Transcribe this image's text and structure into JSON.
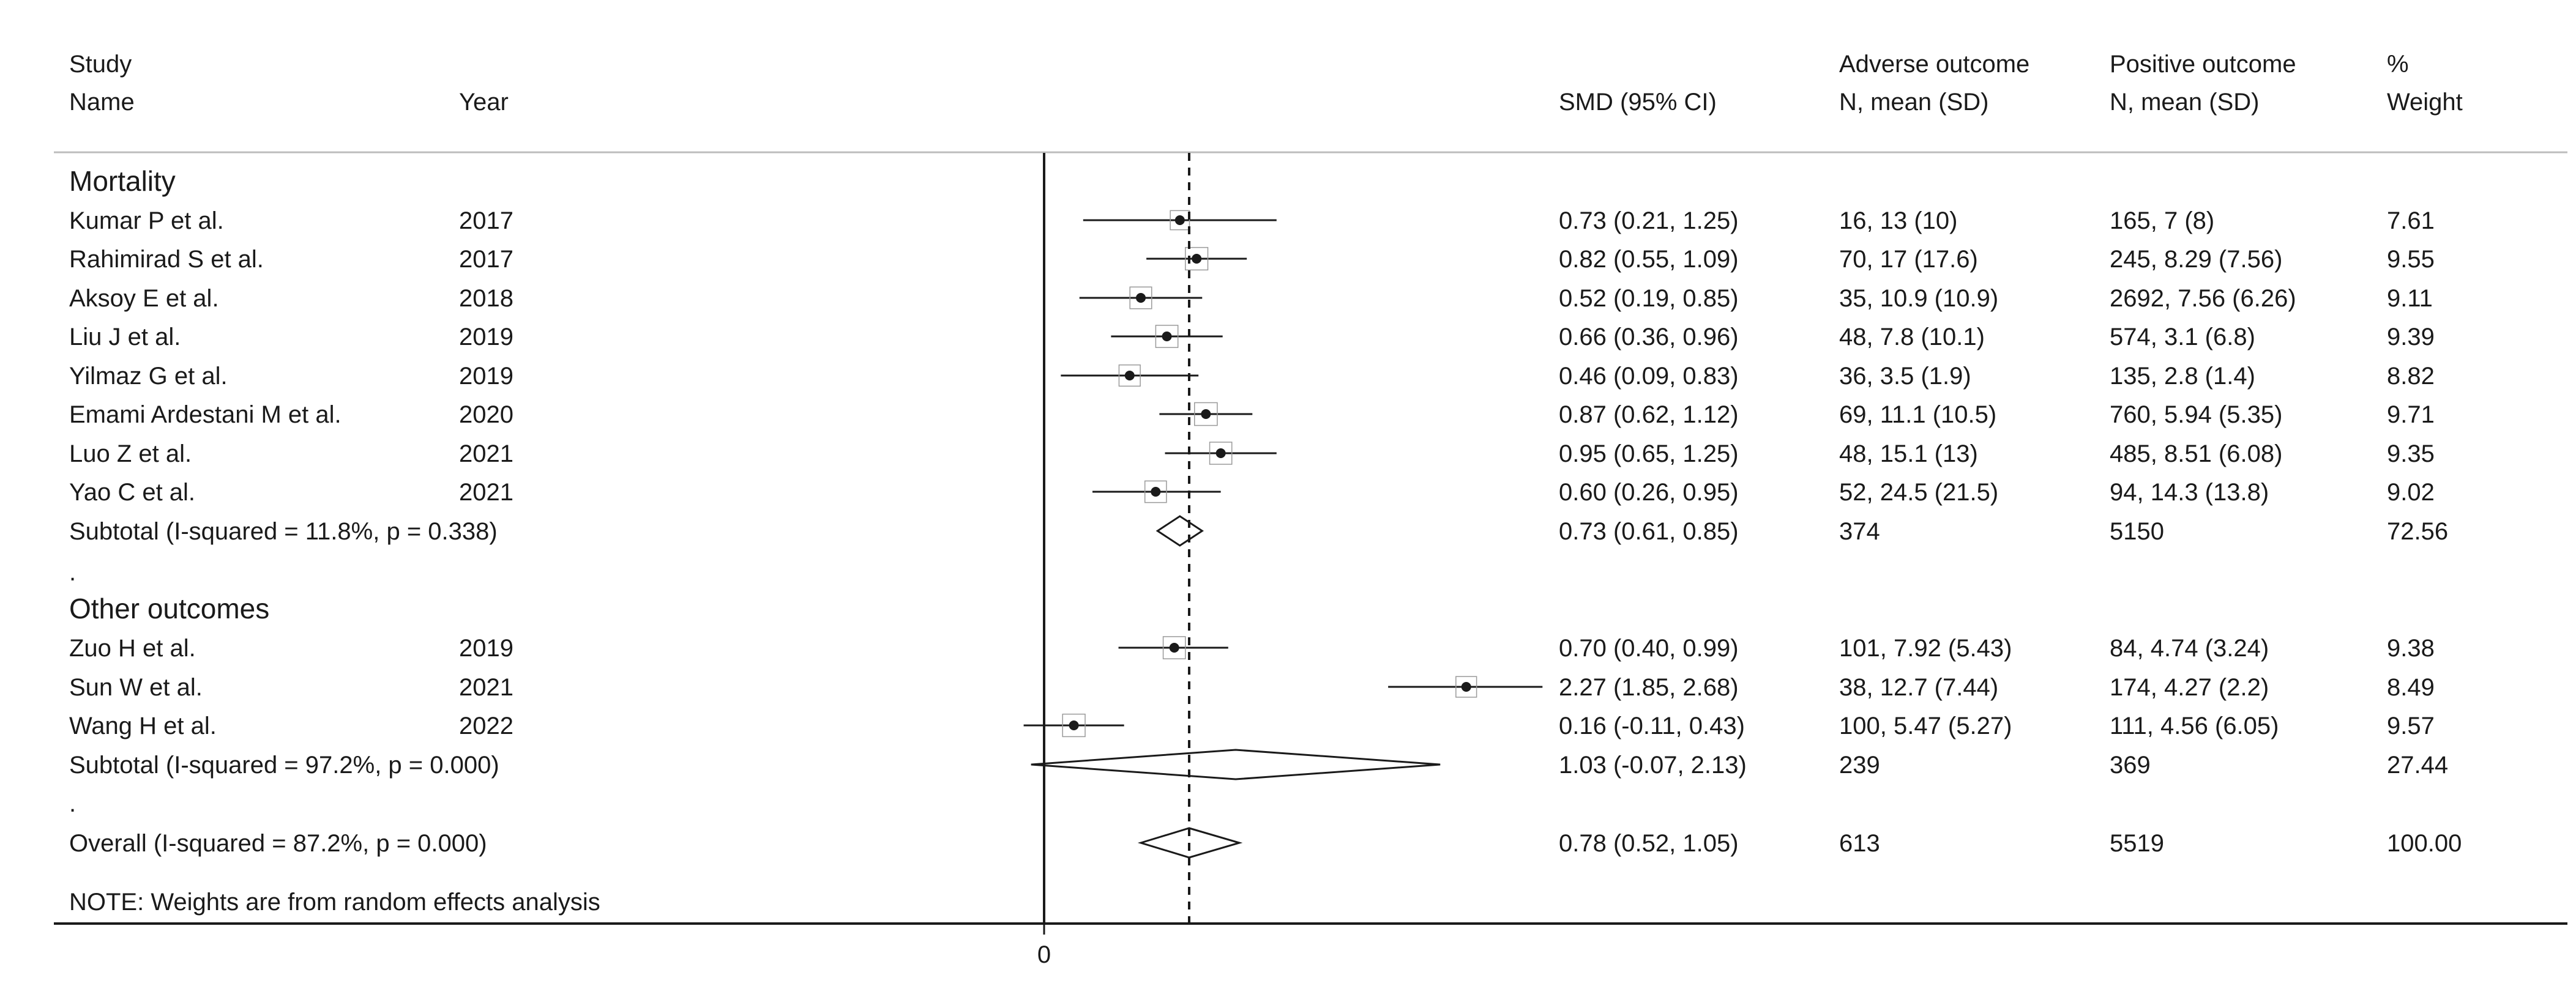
{
  "headers": {
    "study_line1": "Study",
    "study_line2": "Name",
    "year": "Year",
    "smd": "SMD (95% CI)",
    "adverse_line1": "Adverse outcome",
    "adverse_line2": "N, mean (SD)",
    "positive_line1": "Positive outcome",
    "positive_line2": "N, mean (SD)",
    "weight_line1": "%",
    "weight_line2": "Weight"
  },
  "note": "NOTE: Weights are from random effects analysis",
  "colors": {
    "ink": "#1a1a1a",
    "rule": "#bdbdbd",
    "background": "#ffffff"
  },
  "chart_data": {
    "type": "forest",
    "x_tick": "0",
    "xlim": [
      -0.2,
      2.75
    ],
    "reference_line": 0,
    "overall_line": 0.78,
    "rows": [
      {
        "kind": "group",
        "label": "Mortality"
      },
      {
        "kind": "study",
        "name": "Kumar P et al.",
        "year": "2017",
        "est": 0.73,
        "lo": 0.21,
        "hi": 1.25,
        "ci_text": "0.73 (0.21, 1.25)",
        "adverse": "16, 13 (10)",
        "positive": "165, 7 (8)",
        "weight": "7.61"
      },
      {
        "kind": "study",
        "name": "Rahimirad S et al.",
        "year": "2017",
        "est": 0.82,
        "lo": 0.55,
        "hi": 1.09,
        "ci_text": "0.82 (0.55, 1.09)",
        "adverse": "70, 17 (17.6)",
        "positive": "245, 8.29 (7.56)",
        "weight": "9.55"
      },
      {
        "kind": "study",
        "name": "Aksoy E et al.",
        "year": "2018",
        "est": 0.52,
        "lo": 0.19,
        "hi": 0.85,
        "ci_text": "0.52 (0.19, 0.85)",
        "adverse": "35, 10.9 (10.9)",
        "positive": "2692, 7.56 (6.26)",
        "weight": "9.11"
      },
      {
        "kind": "study",
        "name": "Liu J et al.",
        "year": "2019",
        "est": 0.66,
        "lo": 0.36,
        "hi": 0.96,
        "ci_text": "0.66 (0.36, 0.96)",
        "adverse": "48, 7.8 (10.1)",
        "positive": "574, 3.1 (6.8)",
        "weight": "9.39"
      },
      {
        "kind": "study",
        "name": "Yilmaz G et al.",
        "year": "2019",
        "est": 0.46,
        "lo": 0.09,
        "hi": 0.83,
        "ci_text": "0.46 (0.09, 0.83)",
        "adverse": "36, 3.5 (1.9)",
        "positive": "135, 2.8 (1.4)",
        "weight": "8.82"
      },
      {
        "kind": "study",
        "name": "Emami Ardestani M et al.",
        "year": "2020",
        "est": 0.87,
        "lo": 0.62,
        "hi": 1.12,
        "ci_text": "0.87 (0.62, 1.12)",
        "adverse": "69, 11.1 (10.5)",
        "positive": "760, 5.94 (5.35)",
        "weight": "9.71"
      },
      {
        "kind": "study",
        "name": "Luo Z et al.",
        "year": "2021",
        "est": 0.95,
        "lo": 0.65,
        "hi": 1.25,
        "ci_text": "0.95 (0.65, 1.25)",
        "adverse": "48, 15.1 (13)",
        "positive": "485, 8.51 (6.08)",
        "weight": "9.35"
      },
      {
        "kind": "study",
        "name": "Yao C et al.",
        "year": "2021",
        "est": 0.6,
        "lo": 0.26,
        "hi": 0.95,
        "ci_text": "0.60 (0.26, 0.95)",
        "adverse": "52, 24.5 (21.5)",
        "positive": "94, 14.3 (13.8)",
        "weight": "9.02"
      },
      {
        "kind": "subtotal",
        "name": "Subtotal  (I-squared = 11.8%, p = 0.338)",
        "est": 0.73,
        "lo": 0.61,
        "hi": 0.85,
        "ci_text": "0.73 (0.61, 0.85)",
        "adverse": "374",
        "positive": "5150",
        "weight": "72.56"
      },
      {
        "kind": "spacer",
        "label": "."
      },
      {
        "kind": "group",
        "label": "Other outcomes"
      },
      {
        "kind": "study",
        "name": "Zuo H et al.",
        "year": "2019",
        "est": 0.7,
        "lo": 0.4,
        "hi": 0.99,
        "ci_text": "0.70 (0.40, 0.99)",
        "adverse": "101, 7.92 (5.43)",
        "positive": "84, 4.74 (3.24)",
        "weight": "9.38"
      },
      {
        "kind": "study",
        "name": "Sun W et al.",
        "year": "2021",
        "est": 2.27,
        "lo": 1.85,
        "hi": 2.68,
        "ci_text": "2.27 (1.85, 2.68)",
        "adverse": "38, 12.7 (7.44)",
        "positive": "174, 4.27 (2.2)",
        "weight": "8.49"
      },
      {
        "kind": "study",
        "name": "Wang H et al.",
        "year": "2022",
        "est": 0.16,
        "lo": -0.11,
        "hi": 0.43,
        "ci_text": "0.16 (-0.11, 0.43)",
        "adverse": "100, 5.47 (5.27)",
        "positive": "111, 4.56 (6.05)",
        "weight": "9.57"
      },
      {
        "kind": "subtotal",
        "name": "Subtotal  (I-squared = 97.2%, p = 0.000)",
        "est": 1.03,
        "lo": -0.07,
        "hi": 2.13,
        "ci_text": "1.03 (-0.07, 2.13)",
        "adverse": "239",
        "positive": "369",
        "weight": "27.44"
      },
      {
        "kind": "spacer",
        "label": "."
      },
      {
        "kind": "overall",
        "name": "Overall  (I-squared = 87.2%, p = 0.000)",
        "est": 0.78,
        "lo": 0.52,
        "hi": 1.05,
        "ci_text": "0.78 (0.52, 1.05)",
        "adverse": "613",
        "positive": "5519",
        "weight": "100.00"
      }
    ]
  }
}
